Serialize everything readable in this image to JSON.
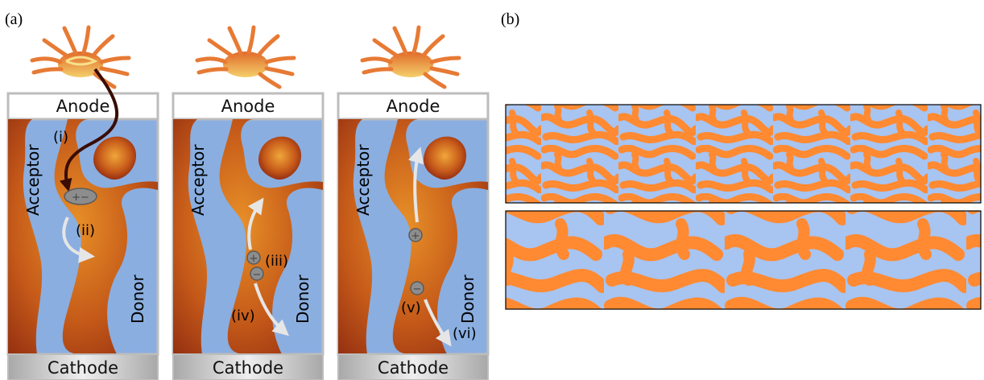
{
  "panel_labels": {
    "a": "(a)",
    "b": "(b)"
  },
  "electrodes": {
    "anode": "Anode",
    "cathode": "Cathode"
  },
  "materials": {
    "acceptor": "Acceptor",
    "donor": "Donor"
  },
  "steps": {
    "i": "(i)",
    "ii": "(ii)",
    "iii": "(iii)",
    "iv": "(iv)",
    "v": "(v)",
    "vi": "(vi)"
  },
  "charges": {
    "exciton": "+−",
    "hole": "+",
    "electron": "−"
  },
  "colors": {
    "donor_blue": "#8aaee0",
    "acceptor_dark": "#8e2a10",
    "acceptor_light": "#e0851e",
    "morph_orange": "#ff8a32",
    "morph_blue": "#a8c4f0",
    "frame_gray": "#bdbdbd"
  }
}
